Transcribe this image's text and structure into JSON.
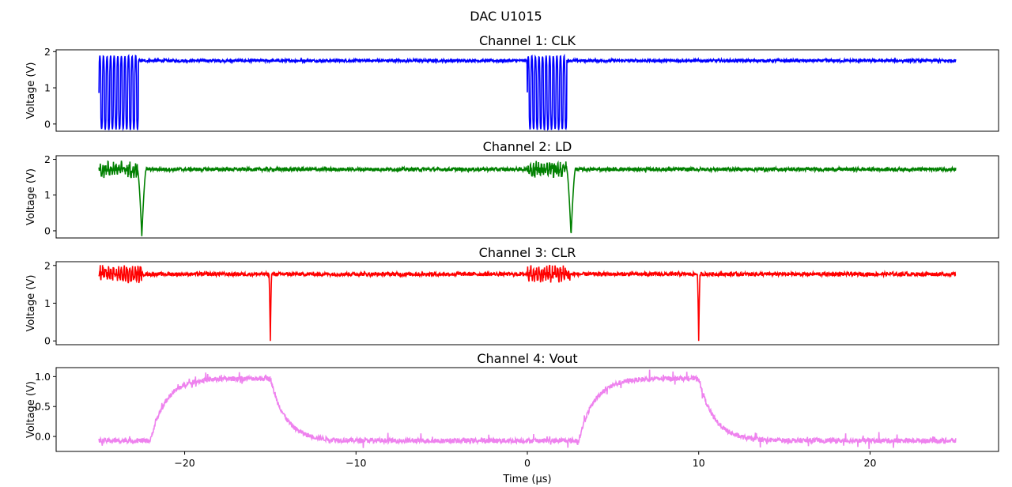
{
  "figure": {
    "suptitle": "DAC U1015",
    "xlabel": "Time (µs)"
  },
  "chart_data": {
    "type": "line",
    "shared_x": true,
    "xlim": [
      -27.5,
      27.5
    ],
    "xticks": [
      -20,
      -10,
      0,
      10,
      20
    ],
    "xtick_labels": [
      "−20",
      "−10",
      "0",
      "10",
      "20"
    ],
    "grid": false,
    "panels": [
      {
        "title": "Channel 1: CLK",
        "ylabel": "Voltage (V)",
        "color": "#0000ff",
        "ylim": [
          -0.2,
          2.05
        ],
        "yticks": [
          0,
          1,
          2
        ],
        "ytick_labels": [
          "0",
          "1",
          "2"
        ],
        "signal": {
          "kind": "clock_bursts",
          "x_start": -25,
          "x_end": 25,
          "baseline": 1.75,
          "noise": 0.04,
          "bursts": [
            {
              "start": -25,
              "end": -22.7,
              "high": 1.88,
              "low": -0.15,
              "cycles": 11
            },
            {
              "start": 0,
              "end": 2.3,
              "high": 1.88,
              "low": -0.15,
              "cycles": 11
            }
          ]
        }
      },
      {
        "title": "Channel 2: LD",
        "ylabel": "Voltage (V)",
        "color": "#008000",
        "ylim": [
          -0.2,
          2.1
        ],
        "yticks": [
          0,
          1,
          2
        ],
        "ytick_labels": [
          "0",
          "1",
          "2"
        ],
        "signal": {
          "kind": "pulses",
          "x_start": -25,
          "x_end": 25,
          "baseline": 1.72,
          "noise": 0.05,
          "ringing": [
            {
              "start": -25,
              "end": -22.5,
              "amp": 0.2
            },
            {
              "start": 0,
              "end": 2.5,
              "amp": 0.2
            }
          ],
          "dips": [
            {
              "x": -22.5,
              "min": -0.15,
              "width": 0.25
            },
            {
              "x": 2.55,
              "min": -0.15,
              "width": 0.25
            }
          ]
        }
      },
      {
        "title": "Channel 3: CLR",
        "ylabel": "Voltage (V)",
        "color": "#ff0000",
        "ylim": [
          -0.1,
          2.1
        ],
        "yticks": [
          0,
          1,
          2
        ],
        "ytick_labels": [
          "0",
          "1",
          "2"
        ],
        "signal": {
          "kind": "pulses",
          "x_start": -25,
          "x_end": 25,
          "baseline": 1.77,
          "noise": 0.05,
          "ringing": [
            {
              "start": -25,
              "end": -22.5,
              "amp": 0.2
            },
            {
              "start": 0,
              "end": 2.5,
              "amp": 0.2
            }
          ],
          "dips": [
            {
              "x": -15,
              "min": 0.0,
              "width": 0.08
            },
            {
              "x": 10,
              "min": 0.0,
              "width": 0.08
            }
          ]
        }
      },
      {
        "title": "Channel 4: Vout",
        "ylabel": "Voltage (V)",
        "color": "#ee82ee",
        "ylim": [
          -0.25,
          1.15
        ],
        "yticks": [
          0.0,
          0.5,
          1.0
        ],
        "ytick_labels": [
          "0.0",
          "0.5",
          "1.0"
        ],
        "signal": {
          "kind": "dac_output",
          "x_start": -25,
          "x_end": 25,
          "low": -0.07,
          "high": 0.97,
          "noise": 0.04,
          "rises": [
            -22,
            3
          ],
          "falls": [
            -15,
            10
          ],
          "rise_tau": 0.9,
          "fall_tau": 0.9
        }
      }
    ]
  }
}
